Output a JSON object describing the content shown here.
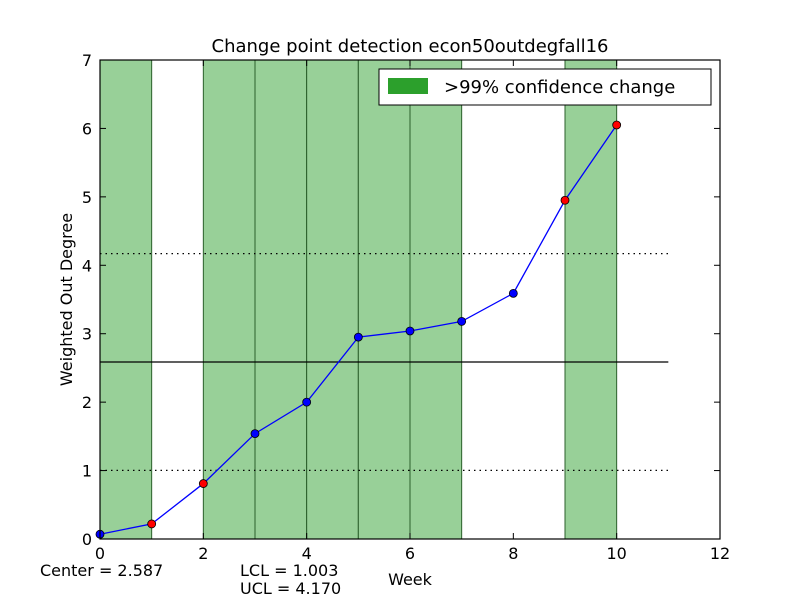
{
  "chart_data": {
    "type": "line",
    "title": "Change point detection econ50outdegfall16",
    "xlabel": "Week",
    "ylabel": "Weighted Out Degree",
    "xlim": [
      0,
      12
    ],
    "ylim": [
      0,
      7
    ],
    "x_ticks": [
      0,
      2,
      4,
      6,
      8,
      10,
      12
    ],
    "y_ticks": [
      0,
      1,
      2,
      3,
      4,
      5,
      6,
      7
    ],
    "grid": false,
    "legend": {
      "position": "top-right",
      "label": ">99% confidence change",
      "color": "#2ca02c"
    },
    "series": [
      {
        "x": [
          0,
          1,
          2,
          3,
          4,
          5,
          6,
          7,
          8,
          9,
          10
        ],
        "y": [
          0.07,
          0.22,
          0.81,
          1.54,
          2.0,
          2.95,
          3.04,
          3.18,
          3.59,
          4.95,
          6.05
        ],
        "line_color": "#0000ff",
        "point_colors": [
          "#0000ff",
          "#ff0000",
          "#ff0000",
          "#0000ff",
          "#0000ff",
          "#0000ff",
          "#0000ff",
          "#0000ff",
          "#0000ff",
          "#ff0000",
          "#ff0000"
        ]
      }
    ],
    "change_regions": [
      [
        0,
        1
      ],
      [
        2,
        3
      ],
      [
        3,
        4
      ],
      [
        4,
        5
      ],
      [
        5,
        6
      ],
      [
        6,
        7
      ],
      [
        9,
        10
      ]
    ],
    "region_color": "#98d098",
    "control_lines": {
      "center": 2.587,
      "lcl": 1.003,
      "ucl": 4.17,
      "x_extent": [
        0,
        11
      ]
    }
  },
  "stats": {
    "center_text": "Center = 2.587",
    "lcl_text": "LCL = 1.003",
    "ucl_text": "UCL = 4.170"
  }
}
